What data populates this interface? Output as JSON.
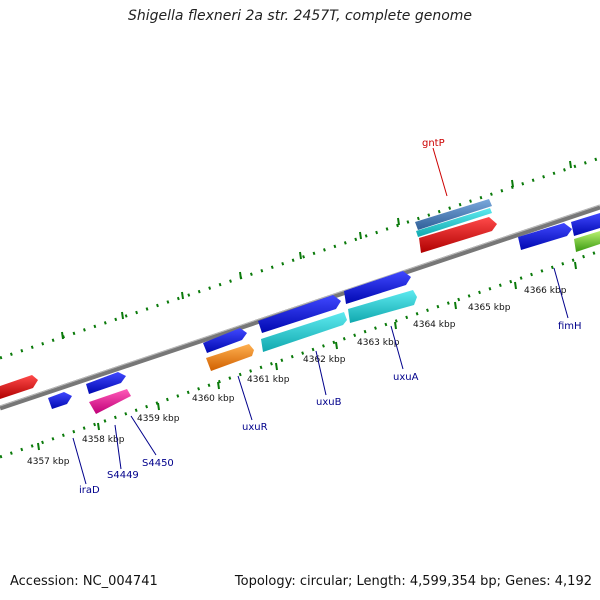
{
  "title": "Shigella flexneri 2a str. 2457T, complete genome",
  "footer": {
    "accession": "Accession: NC_004741",
    "summary": "Topology: circular; Length: 4,599,354 bp; Genes: 4,192"
  },
  "kbp_labels": [
    "4357 kbp",
    "4358 kbp",
    "4359 kbp",
    "4360 kbp",
    "4361 kbp",
    "4362 kbp",
    "4363 kbp",
    "4364 kbp",
    "4365 kbp",
    "4366 kbp"
  ],
  "gene_labels": [
    "iraD",
    "S4449",
    "S4450",
    "uxuR",
    "uxuB",
    "uxuA",
    "fimH",
    "gntP"
  ],
  "colors": {
    "backbone": "#777777",
    "tick": "#0a7a0a",
    "blue": "#0c12e6",
    "cyan": "#19d2d8",
    "red": "#ee1111",
    "magenta": "#ee1a9a",
    "orange": "#ff8c10",
    "steel": "#4f86c2",
    "green": "#55c21a",
    "gene_label": "#00008b",
    "gene_label_red": "#cc0000"
  }
}
